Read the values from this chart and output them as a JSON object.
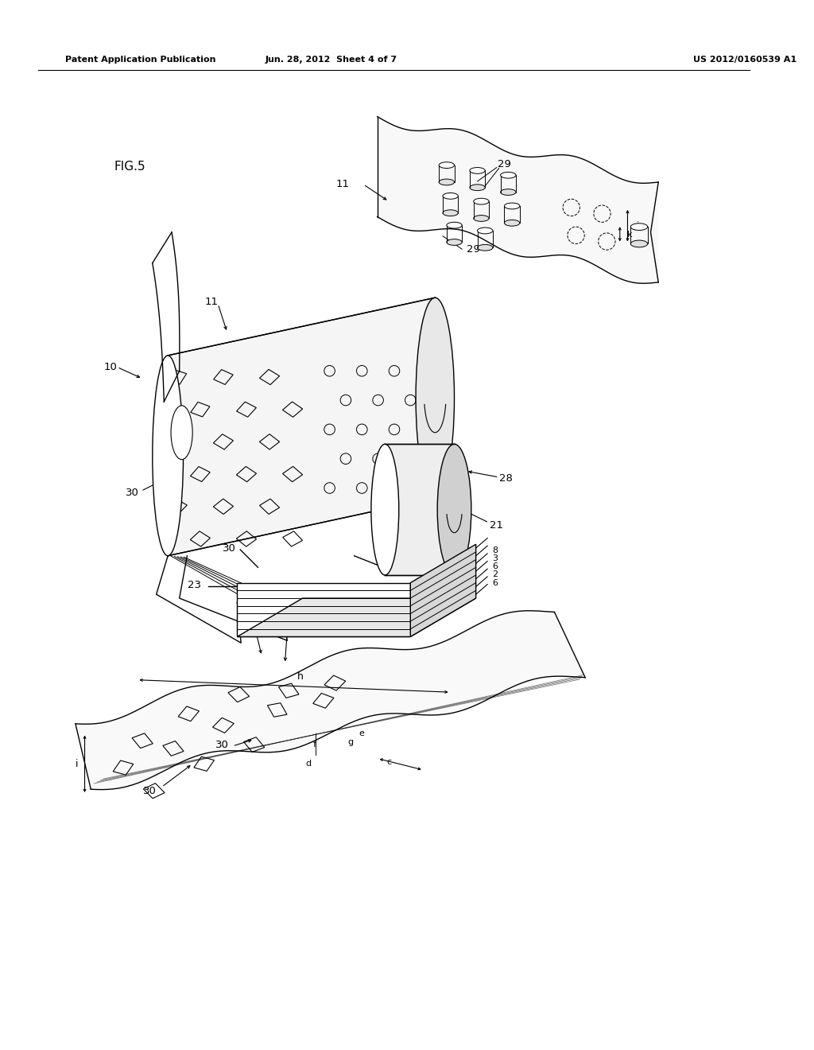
{
  "bg_color": "#ffffff",
  "line_color": "#000000",
  "header_left": "Patent Application Publication",
  "header_mid": "Jun. 28, 2012  Sheet 4 of 7",
  "header_right": "US 2012/0160539 A1",
  "fig_label": "FIG.5",
  "figsize": [
    10.24,
    13.2
  ],
  "dpi": 100
}
